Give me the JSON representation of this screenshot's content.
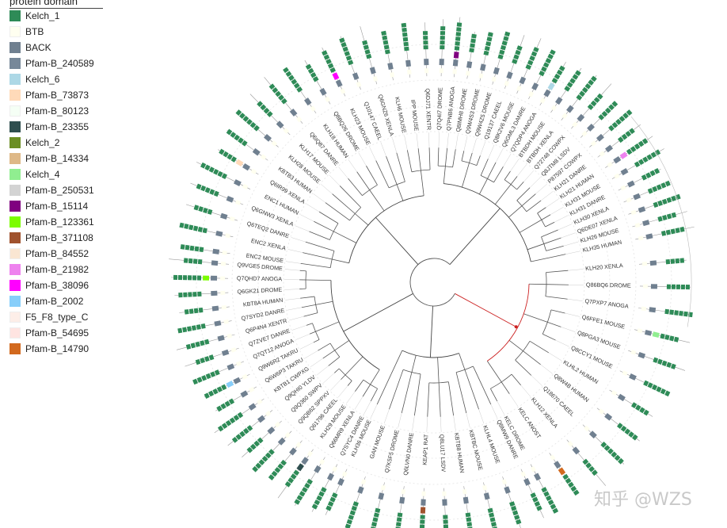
{
  "legend": {
    "title": "protein domain",
    "items": [
      {
        "label": "Kelch_1",
        "color": "#2e8b57"
      },
      {
        "label": "BTB",
        "color": "#fffff0"
      },
      {
        "label": "BACK",
        "color": "#708090"
      },
      {
        "label": "Pfam-B_240589",
        "color": "#778899"
      },
      {
        "label": "Kelch_6",
        "color": "#add8e6"
      },
      {
        "label": "Pfam-B_73873",
        "color": "#ffdab9"
      },
      {
        "label": "Pfam-B_80123",
        "color": "#f5fff5"
      },
      {
        "label": "Pfam-B_23355",
        "color": "#2f4f4f"
      },
      {
        "label": "Kelch_2",
        "color": "#6b8e23"
      },
      {
        "label": "Pfam-B_14334",
        "color": "#deb887"
      },
      {
        "label": "Kelch_4",
        "color": "#90ee90"
      },
      {
        "label": "Pfam-B_250531",
        "color": "#d3d3d3"
      },
      {
        "label": "Pfam-B_15114",
        "color": "#800080"
      },
      {
        "label": "Pfam-B_123361",
        "color": "#7cfc00"
      },
      {
        "label": "Pfam-B_371108",
        "color": "#a0522d"
      },
      {
        "label": "Pfam-B_84552",
        "color": "#fae6d2"
      },
      {
        "label": "Pfam-B_21982",
        "color": "#ee82ee"
      },
      {
        "label": "Pfam-B_38096",
        "color": "#ff00ff"
      },
      {
        "label": "Pfam-B_2002",
        "color": "#87cefa"
      },
      {
        "label": "F5_F8_type_C",
        "color": "#fdeee8"
      },
      {
        "label": "Pfam-B_54695",
        "color": "#ffe4e1"
      },
      {
        "label": "Pfam-B_14790",
        "color": "#d2691e"
      }
    ]
  },
  "tree": {
    "highlight_color": "#cc2222",
    "clades": [
      {
        "name": "c1",
        "leaves": [
          "KLH20 XENLA",
          "Q86BQ6 DROME",
          "Q7PXP7 ANOGA",
          "Q6FFE1 MOUSE",
          "Q8PGA3 MOUSE",
          "Q8CCY1 MOUSE",
          "KLHL2 HUMAN",
          "Q8W4B HUMAN",
          "Q18670 CAEEL",
          "KLH12 XENLA",
          "KELC ANOST",
          "KELC DROME"
        ]
      },
      {
        "name": "c2",
        "leaves": [
          "Q8MW9 DANRE",
          "KLHL4 MOUSE",
          "KBTBC MOUSE",
          "KBTB8 HUMAN",
          "Q8LU17 LSDV",
          "KEAP1 RAT",
          "Q6LVN0 DANRE",
          "Q7K5F5 DROME",
          "GAN MOUSE",
          "KLH36 MOUSE"
        ]
      },
      {
        "name": "c3",
        "leaves": [
          "Q7SYC4 DANRE",
          "Q66MR9 XENLA",
          "KLH29 MOUSE",
          "Q61796 CAEEL",
          "Q9QB62 SPPXV",
          "Q9Q360 SWPV",
          "Q9QHI0 YLDV",
          "KBTB1 CWPXG",
          "Q6W6P3 TAKRU",
          "Q9W6R2 TAKRU",
          "Q7QT12 ANOGA",
          "Q7ZVE7 DANRE",
          "Q6P4N4 XENTR",
          "Q7SYD2 DANRE",
          "KBT8A HUMAN",
          "Q6GK21 DROME",
          "Q7QHD7 ANOGA",
          "Q9VGE5 DROME"
        ]
      },
      {
        "name": "c4",
        "leaves": [
          "ENC2 MOUSE",
          "ENC2 XENLA",
          "Q6TEQ2 DANRE",
          "Q6GNW3 XENLA",
          "ENC1 HUMAN",
          "Q6IR99 XENLA",
          "KBTB3 HUMAN",
          "KLH28 MOUSE",
          "KLH17 MOUSE",
          "Q6IQ87 DANRE",
          "KLH18 HUMAN",
          "Q8BQ26 DROME",
          "KLH23 MOUSE",
          "Q10147 CAEEL",
          "Q6GNZ6 XENLA",
          "KLH6 MOUSE",
          "IPP MOUSE",
          "Q6DJ71 XENTR"
        ]
      },
      {
        "name": "c5",
        "leaves": [
          "Q7Q4I7 DROME",
          "Q7PNB6 ANOGA",
          "Q8IMH8 DROME",
          "Q9W4S3 DROME",
          "Q9W4Z5 DROME",
          "Q19137 CAEEL",
          "Q8K2V6 MOUSE",
          "Q6GML3 DANRE",
          "Q7QDP4 ANOGA",
          "BTBDH MOUSE",
          "BTBDH XENLA",
          "Q72748 COWPX",
          "Q8JTM8 LSDV",
          "P87597 COWPX",
          "KLH21 DANRE",
          "KLH21 HUMAN",
          "KLH31 MOUSE",
          "KLH31 DANRE",
          "KLH30 XENLA",
          "Q6DE07 XENLA",
          "KLH26 MOUSE",
          "KLH35 HUMAN"
        ]
      }
    ]
  },
  "watermark": "知乎 @WZS"
}
